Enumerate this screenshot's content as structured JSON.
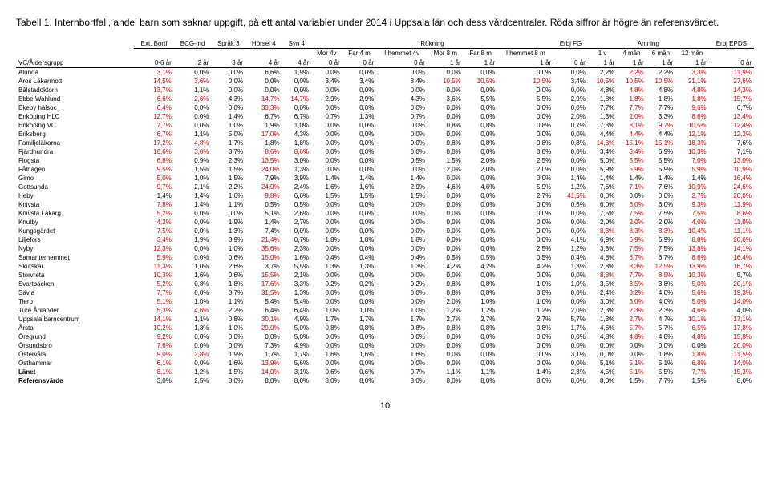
{
  "title": "Tabell 1. Internbortfall, andel barn som saknar uppgift, på ett antal variabler under 2014 i Uppsala län och dess vårdcentraler. Röda siffror är högre än referensvärdet.",
  "pageNumber": "10",
  "groupHeaders": [
    "Ext. Bortf",
    "BCG-ind",
    "Språk 3",
    "Hörsel 4",
    "Syn 4",
    "Rökning",
    "Erbj FG",
    "Amning",
    "Erbj EPDS"
  ],
  "rokSub": [
    "Mor 4v",
    "Far 4 m",
    "I hemmet 4v",
    "Mor 8 m",
    "Far 8 m",
    "I hemmet 8 m"
  ],
  "amnSub": [
    "1 v",
    "4 mån",
    "6 mån",
    "12 mån"
  ],
  "ageRow": [
    "VC/Åldersgrupp",
    "0-6 år",
    "2 år",
    "3 år",
    "4 år",
    "4 år",
    "0 år",
    "0 år",
    "0 år",
    "1 år",
    "1 år",
    "1 år",
    "0 år",
    "1 år",
    "1 år",
    "1 år",
    "1 år",
    "0 år"
  ],
  "redThresholds": [
    3.0,
    2.5,
    8.0,
    8.0,
    8.0,
    8.0,
    8.0,
    8.0,
    8.0,
    8.0,
    8.0,
    8.0,
    8.0,
    1.5,
    7.7,
    1.5,
    8.0
  ],
  "rows": [
    [
      "Alunda",
      "3,1%",
      "0,0%",
      "0,0%",
      "6,6%",
      "1,9%",
      "0,0%",
      "0,0%",
      "0,0%",
      "0,0%",
      "0,0%",
      "0,0%",
      "0,0%",
      "2,2%",
      "2,2%",
      "2,2%",
      "3,3%",
      "11,9%"
    ],
    [
      "Aros Läkarmott",
      "14,5%",
      "3,6%",
      "0,0%",
      "0,0%",
      "0,0%",
      "3,4%",
      "3,4%",
      "3,4%",
      "10,5%",
      "10,5%",
      "10,5%",
      "3,4%",
      "10,5%",
      "10,5%",
      "10,5%",
      "21,1%",
      "27,6%"
    ],
    [
      "Bålstadoktorn",
      "13,7%",
      "1,1%",
      "0,0%",
      "0,0%",
      "0,0%",
      "0,0%",
      "0,0%",
      "0,0%",
      "0,0%",
      "0,0%",
      "0,0%",
      "0,0%",
      "4,8%",
      "4,8%",
      "4,8%",
      "4,8%",
      "14,3%"
    ],
    [
      "Ebbe Wahlund",
      "6,6%",
      "2,6%",
      "4,3%",
      "14,7%",
      "14,7%",
      "2,9%",
      "2,9%",
      "4,3%",
      "3,6%",
      "5,5%",
      "5,5%",
      "2,9%",
      "1,8%",
      "1,8%",
      "1,8%",
      "1,8%",
      "15,7%"
    ],
    [
      "Ekeby hälsoc",
      "6,4%",
      "0,0%",
      "0,0%",
      "33,3%",
      "0,0%",
      "0,0%",
      "0,0%",
      "0,0%",
      "0,0%",
      "0,0%",
      "0,0%",
      "0,0%",
      "7,7%",
      "7,7%",
      "7,7%",
      "9,6%",
      "6,7%"
    ],
    [
      "Enköping HLC",
      "12,7%",
      "0,0%",
      "1,4%",
      "6,7%",
      "6,7%",
      "0,7%",
      "1,3%",
      "0,7%",
      "0,0%",
      "0,0%",
      "0,0%",
      "2,0%",
      "1,3%",
      "2,0%",
      "3,3%",
      "8,6%",
      "13,4%"
    ],
    [
      "Enköping VC",
      "7,7%",
      "0,0%",
      "1,0%",
      "1,9%",
      "1,0%",
      "0,0%",
      "0,0%",
      "0,0%",
      "0,8%",
      "0,8%",
      "0,8%",
      "0,7%",
      "7,3%",
      "8,1%",
      "9,7%",
      "10,5%",
      "12,4%"
    ],
    [
      "Eriksberg",
      "6,7%",
      "1,1%",
      "5,0%",
      "17,0%",
      "4,3%",
      "0,0%",
      "0,0%",
      "0,0%",
      "0,0%",
      "0,0%",
      "0,0%",
      "0,0%",
      "4,4%",
      "4,4%",
      "4,4%",
      "12,1%",
      "12,2%"
    ],
    [
      "Familjeläkarna",
      "17,2%",
      "4,8%",
      "1,7%",
      "1,8%",
      "1,8%",
      "0,0%",
      "0,0%",
      "0,0%",
      "0,8%",
      "0,8%",
      "0,8%",
      "0,8%",
      "14,3%",
      "15,1%",
      "15,1%",
      "18,3%",
      "7,6%"
    ],
    [
      "Fjärdhundra",
      "10,6%",
      "3,0%",
      "3,7%",
      "8,6%",
      "8,6%",
      "0,0%",
      "0,0%",
      "0,0%",
      "0,0%",
      "0,0%",
      "0,0%",
      "0,0%",
      "3,4%",
      "3,4%",
      "6,9%",
      "10,3%",
      "7,1%"
    ],
    [
      "Flogsta",
      "6,8%",
      "0,9%",
      "2,3%",
      "13,5%",
      "3,0%",
      "0,0%",
      "0,0%",
      "0,5%",
      "1,5%",
      "2,0%",
      "2,5%",
      "0,0%",
      "5,0%",
      "5,5%",
      "5,5%",
      "7,0%",
      "13,0%"
    ],
    [
      "Fålhagen",
      "9,5%",
      "1,5%",
      "1,5%",
      "24,0%",
      "1,3%",
      "0,0%",
      "0,0%",
      "0,0%",
      "2,0%",
      "2,0%",
      "2,0%",
      "0,0%",
      "5,9%",
      "5,9%",
      "5,9%",
      "5,9%",
      "10,9%"
    ],
    [
      "Gimo",
      "5,0%",
      "1,0%",
      "1,5%",
      "7,9%",
      "3,9%",
      "1,4%",
      "1,4%",
      "1,4%",
      "0,0%",
      "0,0%",
      "0,0%",
      "1,4%",
      "1,4%",
      "1,4%",
      "1,4%",
      "1,4%",
      "16,4%"
    ],
    [
      "Gottsunda",
      "9,7%",
      "2,1%",
      "2,2%",
      "24,0%",
      "2,4%",
      "1,6%",
      "1,6%",
      "2,9%",
      "4,6%",
      "4,6%",
      "5,9%",
      "1,2%",
      "7,6%",
      "7,1%",
      "7,6%",
      "10,9%",
      "24,6%"
    ],
    [
      "Heby",
      "1,4%",
      "1,4%",
      "1,6%",
      "9,8%",
      "6,6%",
      "1,5%",
      "1,5%",
      "1,5%",
      "0,0%",
      "0,0%",
      "2,7%",
      "41,5%",
      "0,0%",
      "0,0%",
      "0,0%",
      "2,7%",
      "20,0%"
    ],
    [
      "Knivsta",
      "7,8%",
      "1,4%",
      "1,1%",
      "0,5%",
      "0,5%",
      "0,0%",
      "0,0%",
      "0,0%",
      "0,0%",
      "0,0%",
      "0,0%",
      "0,6%",
      "6,0%",
      "6,0%",
      "6,0%",
      "9,3%",
      "11,9%"
    ],
    [
      "Knivsta Läkarg",
      "5,2%",
      "0,0%",
      "0,0%",
      "5,1%",
      "2,6%",
      "0,0%",
      "0,0%",
      "0,0%",
      "0,0%",
      "0,0%",
      "0,0%",
      "0,0%",
      "7,5%",
      "7,5%",
      "7,5%",
      "7,5%",
      "8,6%"
    ],
    [
      "Knutby",
      "4,2%",
      "0,0%",
      "1,9%",
      "1,4%",
      "2,7%",
      "0,0%",
      "0,0%",
      "0,0%",
      "0,0%",
      "0,0%",
      "0,0%",
      "0,0%",
      "2,0%",
      "2,0%",
      "2,0%",
      "4,0%",
      "11,9%"
    ],
    [
      "Kungsgärdet",
      "7,5%",
      "0,0%",
      "1,3%",
      "7,4%",
      "0,0%",
      "0,0%",
      "0,0%",
      "0,0%",
      "0,0%",
      "0,0%",
      "0,0%",
      "0,0%",
      "8,3%",
      "8,3%",
      "8,3%",
      "10,4%",
      "11,1%"
    ],
    [
      "Liljefors",
      "3,4%",
      "1,9%",
      "3,9%",
      "21,4%",
      "0,7%",
      "1,8%",
      "1,8%",
      "1,8%",
      "0,0%",
      "0,0%",
      "0,0%",
      "4,1%",
      "6,9%",
      "6,9%",
      "6,9%",
      "8,8%",
      "20,6%"
    ],
    [
      "Nyby",
      "12,3%",
      "0,0%",
      "1,0%",
      "35,6%",
      "2,3%",
      "0,0%",
      "0,0%",
      "0,0%",
      "0,0%",
      "0,0%",
      "2,5%",
      "1,2%",
      "3,8%",
      "7,5%",
      "7,5%",
      "13,8%",
      "14,1%"
    ],
    [
      "Samariterhemmet",
      "5,9%",
      "0,0%",
      "0,6%",
      "15,0%",
      "1,6%",
      "0,4%",
      "0,4%",
      "0,4%",
      "0,5%",
      "0,5%",
      "0,5%",
      "0,4%",
      "4,8%",
      "6,7%",
      "6,7%",
      "8,6%",
      "16,4%"
    ],
    [
      "Skutskär",
      "11,3%",
      "1,0%",
      "2,6%",
      "3,7%",
      "5,5%",
      "1,3%",
      "1,3%",
      "1,3%",
      "4,2%",
      "4,2%",
      "4,2%",
      "1,3%",
      "2,8%",
      "8,3%",
      "12,5%",
      "13,9%",
      "16,7%"
    ],
    [
      "Storvreta",
      "10,3%",
      "1,6%",
      "0,6%",
      "15,5%",
      "2,1%",
      "0,0%",
      "0,0%",
      "0,0%",
      "0,0%",
      "0,0%",
      "0,0%",
      "0,0%",
      "8,8%",
      "7,7%",
      "8,5%",
      "10,3%",
      "5,7%"
    ],
    [
      "Svartbäcken",
      "5,2%",
      "0,8%",
      "1,8%",
      "17,6%",
      "3,3%",
      "0,2%",
      "0,2%",
      "0,2%",
      "0,8%",
      "0,8%",
      "1,0%",
      "1,0%",
      "3,5%",
      "3,5%",
      "3,8%",
      "5,0%",
      "20,1%"
    ],
    [
      "Sävja",
      "7,7%",
      "0,0%",
      "0,7%",
      "31,5%",
      "1,3%",
      "0,0%",
      "0,0%",
      "0,0%",
      "0,8%",
      "0,8%",
      "0,8%",
      "0,0%",
      "2,4%",
      "3,2%",
      "4,0%",
      "5,6%",
      "19,3%"
    ],
    [
      "Tierp",
      "5,1%",
      "1,0%",
      "1,1%",
      "5,4%",
      "5,4%",
      "0,0%",
      "0,0%",
      "0,0%",
      "2,0%",
      "1,0%",
      "1,0%",
      "0,0%",
      "3,0%",
      "3,0%",
      "4,0%",
      "5,0%",
      "14,0%"
    ],
    [
      "Ture Åhlander",
      "5,3%",
      "4,6%",
      "2,2%",
      "6,4%",
      "6,4%",
      "1,0%",
      "1,0%",
      "1,0%",
      "1,2%",
      "1,2%",
      "1,2%",
      "2,0%",
      "2,3%",
      "2,3%",
      "2,3%",
      "4,6%",
      "4,0%"
    ],
    [
      "Uppsala barncentrum",
      "14,1%",
      "1,1%",
      "0,8%",
      "30,1%",
      "4,9%",
      "1,7%",
      "1,7%",
      "1,7%",
      "2,7%",
      "2,7%",
      "2,7%",
      "5,7%",
      "1,3%",
      "2,7%",
      "4,7%",
      "10,1%",
      "17,1%"
    ],
    [
      "Årsta",
      "10,2%",
      "1,3%",
      "1,0%",
      "29,0%",
      "5,0%",
      "0,8%",
      "0,8%",
      "0,8%",
      "0,8%",
      "0,8%",
      "0,8%",
      "1,7%",
      "4,6%",
      "5,7%",
      "5,7%",
      "6,5%",
      "17,8%"
    ],
    [
      "Öregrund",
      "9,2%",
      "0,0%",
      "0,0%",
      "0,0%",
      "5,0%",
      "0,0%",
      "0,0%",
      "0,0%",
      "0,0%",
      "0,0%",
      "0,0%",
      "0,0%",
      "4,8%",
      "4,8%",
      "4,8%",
      "4,8%",
      "15,8%"
    ],
    [
      "Örsundsbro",
      "7,6%",
      "0,0%",
      "0,0%",
      "7,3%",
      "4,9%",
      "0,0%",
      "0,0%",
      "0,0%",
      "0,0%",
      "0,0%",
      "0,0%",
      "0,0%",
      "0,0%",
      "0,0%",
      "0,0%",
      "0,0%",
      "20,0%"
    ],
    [
      "Östervåla",
      "9,0%",
      "2,8%",
      "1,9%",
      "1,7%",
      "1,7%",
      "1,6%",
      "1,6%",
      "1,6%",
      "0,0%",
      "0,0%",
      "0,0%",
      "3,1%",
      "0,0%",
      "0,0%",
      "1,8%",
      "1,8%",
      "11,5%"
    ],
    [
      "Östhammar",
      "6,1%",
      "0,0%",
      "1,6%",
      "13,9%",
      "5,6%",
      "0,0%",
      "0,0%",
      "0,0%",
      "0,0%",
      "0,0%",
      "0,0%",
      "0,0%",
      "5,1%",
      "5,1%",
      "5,1%",
      "6,8%",
      "14,0%"
    ],
    [
      "Länet",
      "8,1%",
      "1,2%",
      "1,5%",
      "14,0%",
      "3,1%",
      "0,6%",
      "0,6%",
      "0,7%",
      "1,1%",
      "1,1%",
      "1,4%",
      "2,3%",
      "4,5%",
      "5,1%",
      "5,5%",
      "7,7%",
      "15,3%"
    ],
    [
      "Referensvärde",
      "3,0%",
      "2,5%",
      "8,0%",
      "8,0%",
      "8,0%",
      "8,0%",
      "8,0%",
      "8,0%",
      "8,0%",
      "8,0%",
      "8,0%",
      "8,0%",
      "8,0%",
      "1,5%",
      "7,7%",
      "1,5%",
      "8,0%"
    ]
  ],
  "boldRows": [
    "Länet",
    "Referensvärde"
  ]
}
